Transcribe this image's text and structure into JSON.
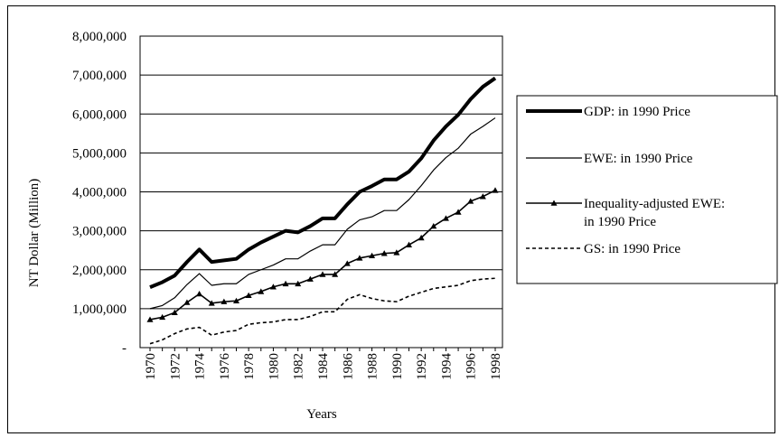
{
  "chart_data": {
    "type": "line",
    "title": "",
    "xlabel": "Years",
    "ylabel": "NT Dollar (Million)",
    "ylim": [
      0,
      8000000
    ],
    "yticks": [
      {
        "value": 0,
        "label": "-"
      },
      {
        "value": 1000000,
        "label": "1,000,000"
      },
      {
        "value": 2000000,
        "label": "2,000,000"
      },
      {
        "value": 3000000,
        "label": "3,000,000"
      },
      {
        "value": 4000000,
        "label": "4,000,000"
      },
      {
        "value": 5000000,
        "label": "5,000,000"
      },
      {
        "value": 6000000,
        "label": "6,000,000"
      },
      {
        "value": 7000000,
        "label": "7,000,000"
      },
      {
        "value": 8000000,
        "label": "8,000,000"
      }
    ],
    "x": [
      1970,
      1971,
      1972,
      1973,
      1974,
      1975,
      1976,
      1977,
      1978,
      1979,
      1980,
      1981,
      1982,
      1983,
      1984,
      1985,
      1986,
      1987,
      1988,
      1989,
      1990,
      1991,
      1992,
      1993,
      1994,
      1995,
      1996,
      1997,
      1998
    ],
    "xtick_labels": [
      "1970",
      "1972",
      "1974",
      "1976",
      "1978",
      "1980",
      "1982",
      "1984",
      "1986",
      "1988",
      "1990",
      "1992",
      "1994",
      "1996",
      "1998"
    ],
    "grid": "horizontal",
    "legend": "right",
    "series": [
      {
        "name": "GDP: in 1990 Price",
        "style": "thick",
        "values": [
          1550000,
          1680000,
          1850000,
          2200000,
          2520000,
          2200000,
          2240000,
          2280000,
          2520000,
          2700000,
          2850000,
          3000000,
          2960000,
          3120000,
          3320000,
          3320000,
          3680000,
          4000000,
          4150000,
          4320000,
          4320000,
          4520000,
          4860000,
          5320000,
          5680000,
          5980000,
          6380000,
          6700000,
          6920000
        ]
      },
      {
        "name": "EWE: in 1990 Price",
        "style": "thin",
        "values": [
          1000000,
          1080000,
          1280000,
          1620000,
          1900000,
          1600000,
          1640000,
          1640000,
          1880000,
          2000000,
          2120000,
          2280000,
          2280000,
          2480000,
          2640000,
          2640000,
          3040000,
          3280000,
          3360000,
          3520000,
          3520000,
          3800000,
          4160000,
          4560000,
          4880000,
          5120000,
          5480000,
          5680000,
          5900000
        ]
      },
      {
        "name": "Inequality-adjusted EWE: in 1990 Price",
        "style": "marker",
        "values": [
          720000,
          780000,
          900000,
          1160000,
          1380000,
          1140000,
          1180000,
          1200000,
          1340000,
          1440000,
          1560000,
          1640000,
          1640000,
          1760000,
          1880000,
          1880000,
          2160000,
          2300000,
          2360000,
          2420000,
          2440000,
          2640000,
          2820000,
          3120000,
          3320000,
          3480000,
          3760000,
          3880000,
          4040000
        ]
      },
      {
        "name": "GS: in 1990 Price",
        "style": "dashed",
        "values": [
          100000,
          200000,
          360000,
          480000,
          520000,
          320000,
          400000,
          440000,
          600000,
          640000,
          660000,
          720000,
          720000,
          800000,
          920000,
          920000,
          1240000,
          1360000,
          1260000,
          1200000,
          1180000,
          1320000,
          1420000,
          1520000,
          1560000,
          1600000,
          1720000,
          1760000,
          1780000
        ]
      }
    ]
  }
}
